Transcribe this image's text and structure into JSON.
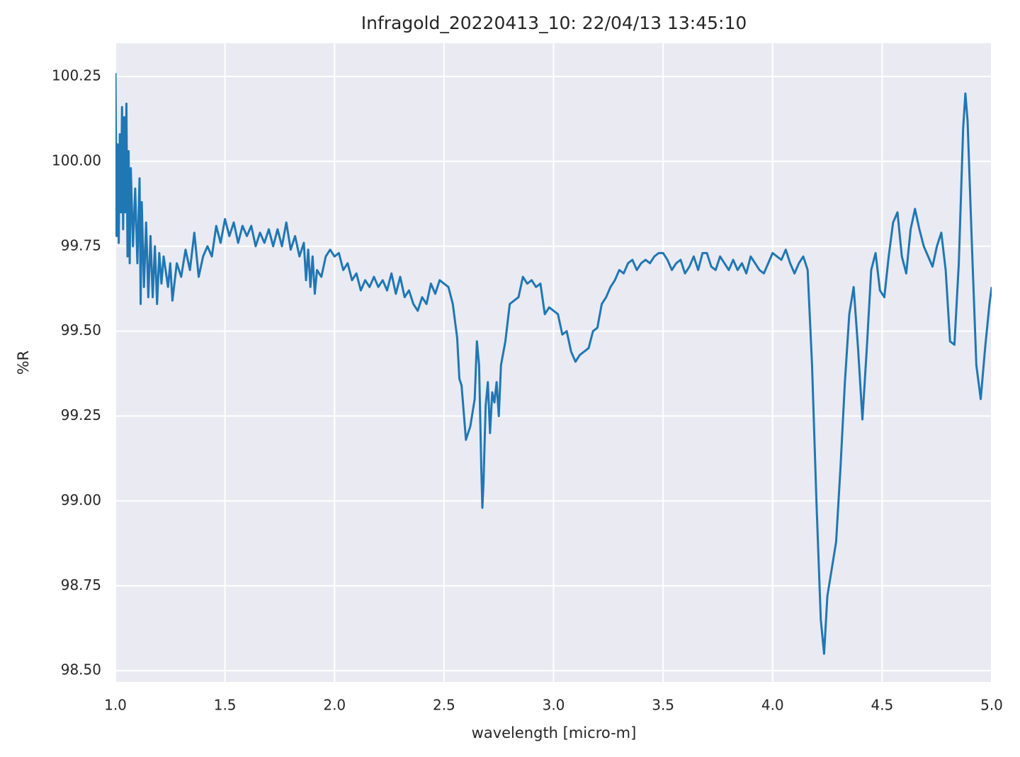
{
  "chart_data": {
    "type": "line",
    "title": "Infragold_20220413_10:  22/04/13 13:45:10",
    "x_label": "wavelength [micro-m]",
    "y_label": "%R",
    "xlim": [
      1.0,
      5.0
    ],
    "ylim": [
      98.467,
      100.348
    ],
    "xticks": [
      {
        "value": 1.0,
        "label": "1.0"
      },
      1.5,
      {
        "value": 2.0,
        "label": "2.0"
      },
      2.5,
      {
        "value": 3.0,
        "label": "3.0"
      },
      3.5,
      {
        "value": 4.0,
        "label": "4.0"
      },
      4.5,
      {
        "value": 5.0,
        "label": "5.0"
      }
    ],
    "yticks": [
      {
        "value": 98.5,
        "label": "98.50"
      },
      98.75,
      {
        "value": 99.0,
        "label": "99.00"
      },
      99.25,
      {
        "value": 99.5,
        "label": "99.50"
      },
      99.75,
      {
        "value": 100.0,
        "label": "100.00"
      },
      100.25
    ],
    "grid": true,
    "x": [
      1.0,
      1.005,
      1.01,
      1.015,
      1.02,
      1.025,
      1.03,
      1.035,
      1.04,
      1.045,
      1.05,
      1.055,
      1.06,
      1.065,
      1.07,
      1.08,
      1.09,
      1.1,
      1.11,
      1.115,
      1.12,
      1.13,
      1.14,
      1.15,
      1.16,
      1.17,
      1.18,
      1.19,
      1.2,
      1.21,
      1.22,
      1.24,
      1.25,
      1.26,
      1.28,
      1.3,
      1.32,
      1.34,
      1.36,
      1.38,
      1.4,
      1.42,
      1.44,
      1.46,
      1.48,
      1.5,
      1.52,
      1.54,
      1.56,
      1.58,
      1.6,
      1.62,
      1.64,
      1.66,
      1.68,
      1.7,
      1.72,
      1.74,
      1.76,
      1.78,
      1.8,
      1.82,
      1.84,
      1.86,
      1.87,
      1.88,
      1.89,
      1.9,
      1.91,
      1.92,
      1.94,
      1.96,
      1.98,
      2.0,
      2.02,
      2.04,
      2.06,
      2.08,
      2.1,
      2.12,
      2.14,
      2.16,
      2.18,
      2.2,
      2.22,
      2.24,
      2.26,
      2.28,
      2.3,
      2.32,
      2.34,
      2.36,
      2.38,
      2.4,
      2.42,
      2.44,
      2.46,
      2.48,
      2.5,
      2.52,
      2.54,
      2.56,
      2.57,
      2.58,
      2.6,
      2.62,
      2.64,
      2.65,
      2.66,
      2.67,
      2.675,
      2.68,
      2.69,
      2.7,
      2.71,
      2.72,
      2.73,
      2.74,
      2.75,
      2.76,
      2.78,
      2.8,
      2.82,
      2.84,
      2.86,
      2.88,
      2.9,
      2.92,
      2.94,
      2.96,
      2.98,
      3.0,
      3.02,
      3.04,
      3.06,
      3.08,
      3.1,
      3.12,
      3.14,
      3.16,
      3.18,
      3.2,
      3.22,
      3.24,
      3.26,
      3.28,
      3.3,
      3.32,
      3.34,
      3.36,
      3.38,
      3.4,
      3.42,
      3.44,
      3.46,
      3.48,
      3.5,
      3.52,
      3.54,
      3.56,
      3.58,
      3.6,
      3.62,
      3.64,
      3.66,
      3.68,
      3.7,
      3.72,
      3.74,
      3.76,
      3.78,
      3.8,
      3.82,
      3.84,
      3.86,
      3.88,
      3.9,
      3.92,
      3.94,
      3.96,
      3.98,
      4.0,
      4.02,
      4.04,
      4.06,
      4.08,
      4.1,
      4.12,
      4.14,
      4.16,
      4.18,
      4.2,
      4.22,
      4.235,
      4.25,
      4.27,
      4.29,
      4.31,
      4.33,
      4.35,
      4.37,
      4.39,
      4.41,
      4.43,
      4.45,
      4.47,
      4.49,
      4.51,
      4.53,
      4.55,
      4.57,
      4.59,
      4.61,
      4.63,
      4.65,
      4.67,
      4.69,
      4.71,
      4.73,
      4.75,
      4.77,
      4.79,
      4.81,
      4.83,
      4.85,
      4.87,
      4.88,
      4.89,
      4.91,
      4.93,
      4.95,
      4.97,
      4.99,
      5.0
    ],
    "series": [
      {
        "name": "%R",
        "color": "#1f77b4",
        "values": [
          100.26,
          99.78,
          100.05,
          99.76,
          100.08,
          99.85,
          100.16,
          99.8,
          100.13,
          99.85,
          100.17,
          99.72,
          100.03,
          99.7,
          99.98,
          99.75,
          99.92,
          99.7,
          99.95,
          99.58,
          99.88,
          99.63,
          99.82,
          99.6,
          99.78,
          99.6,
          99.75,
          99.58,
          99.73,
          99.64,
          99.72,
          99.63,
          99.7,
          99.59,
          99.7,
          99.66,
          99.74,
          99.68,
          99.79,
          99.66,
          99.72,
          99.75,
          99.72,
          99.81,
          99.76,
          99.83,
          99.78,
          99.82,
          99.76,
          99.81,
          99.78,
          99.81,
          99.75,
          99.79,
          99.76,
          99.8,
          99.75,
          99.8,
          99.75,
          99.82,
          99.74,
          99.78,
          99.72,
          99.76,
          99.65,
          99.74,
          99.63,
          99.72,
          99.61,
          99.68,
          99.66,
          99.72,
          99.74,
          99.72,
          99.73,
          99.68,
          99.7,
          99.65,
          99.67,
          99.62,
          99.65,
          99.63,
          99.66,
          99.63,
          99.65,
          99.62,
          99.67,
          99.61,
          99.66,
          99.6,
          99.62,
          99.58,
          99.56,
          99.6,
          99.58,
          99.64,
          99.61,
          99.65,
          99.64,
          99.63,
          99.58,
          99.48,
          99.36,
          99.34,
          99.18,
          99.22,
          99.3,
          99.47,
          99.4,
          99.1,
          98.98,
          99.05,
          99.28,
          99.35,
          99.2,
          99.32,
          99.29,
          99.35,
          99.25,
          99.4,
          99.47,
          99.58,
          99.59,
          99.6,
          99.66,
          99.64,
          99.65,
          99.63,
          99.64,
          99.55,
          99.57,
          99.56,
          99.55,
          99.49,
          99.5,
          99.44,
          99.41,
          99.43,
          99.44,
          99.45,
          99.5,
          99.51,
          99.58,
          99.6,
          99.63,
          99.65,
          99.68,
          99.67,
          99.7,
          99.71,
          99.68,
          99.7,
          99.71,
          99.7,
          99.72,
          99.73,
          99.73,
          99.71,
          99.68,
          99.7,
          99.71,
          99.67,
          99.69,
          99.72,
          99.68,
          99.73,
          99.73,
          99.69,
          99.68,
          99.72,
          99.7,
          99.68,
          99.71,
          99.68,
          99.7,
          99.67,
          99.72,
          99.7,
          99.68,
          99.67,
          99.7,
          99.73,
          99.72,
          99.71,
          99.74,
          99.7,
          99.67,
          99.7,
          99.72,
          99.68,
          99.4,
          99.0,
          98.65,
          98.55,
          98.72,
          98.8,
          98.88,
          99.1,
          99.35,
          99.55,
          99.63,
          99.45,
          99.24,
          99.45,
          99.68,
          99.73,
          99.62,
          99.6,
          99.72,
          99.82,
          99.85,
          99.72,
          99.67,
          99.8,
          99.86,
          99.8,
          99.75,
          99.72,
          99.69,
          99.75,
          99.79,
          99.68,
          99.47,
          99.46,
          99.7,
          100.1,
          100.2,
          100.12,
          99.75,
          99.4,
          99.3,
          99.45,
          99.58,
          99.63
        ]
      }
    ]
  }
}
